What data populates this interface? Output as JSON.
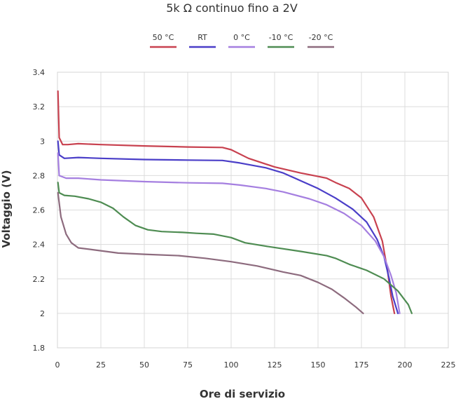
{
  "chart_data": {
    "type": "line",
    "title": "5k Ω continuo fino a 2V",
    "xlabel": "Ore di servizio",
    "ylabel": "Voltaggio (V)",
    "xlim": [
      0,
      225
    ],
    "ylim": [
      1.8,
      3.4
    ],
    "xticks": [
      0,
      25,
      50,
      75,
      100,
      125,
      150,
      175,
      200,
      225
    ],
    "yticks": [
      1.8,
      2,
      2.2,
      2.4,
      2.6,
      2.8,
      3,
      3.2,
      3.4
    ],
    "xtick_labels": [
      "0",
      "25",
      "50",
      "75",
      "100",
      "125",
      "150",
      "175",
      "200",
      "225"
    ],
    "ytick_labels": [
      "1.8",
      "2",
      "2.2",
      "2.4",
      "2.6",
      "2.8",
      "3",
      "3.2",
      "3.4"
    ],
    "grid": true,
    "legend_position": "top-center",
    "series": [
      {
        "name": "50 °C",
        "color": "#c8414f",
        "points": [
          [
            0.3,
            3.29
          ],
          [
            1,
            3.02
          ],
          [
            3,
            2.98
          ],
          [
            6,
            2.98
          ],
          [
            12,
            2.985
          ],
          [
            25,
            2.98
          ],
          [
            50,
            2.972
          ],
          [
            75,
            2.966
          ],
          [
            95,
            2.963
          ],
          [
            100,
            2.95
          ],
          [
            110,
            2.9
          ],
          [
            125,
            2.85
          ],
          [
            140,
            2.815
          ],
          [
            150,
            2.795
          ],
          [
            155,
            2.785
          ],
          [
            160,
            2.76
          ],
          [
            168,
            2.725
          ],
          [
            175,
            2.67
          ],
          [
            182,
            2.56
          ],
          [
            187,
            2.42
          ],
          [
            190,
            2.25
          ],
          [
            192,
            2.1
          ],
          [
            194,
            2.0
          ]
        ]
      },
      {
        "name": "RT",
        "color": "#4a3ec8",
        "points": [
          [
            0.3,
            3.0
          ],
          [
            1,
            2.92
          ],
          [
            4,
            2.9
          ],
          [
            12,
            2.905
          ],
          [
            25,
            2.9
          ],
          [
            50,
            2.893
          ],
          [
            75,
            2.89
          ],
          [
            95,
            2.888
          ],
          [
            105,
            2.873
          ],
          [
            120,
            2.845
          ],
          [
            130,
            2.815
          ],
          [
            140,
            2.77
          ],
          [
            150,
            2.725
          ],
          [
            160,
            2.67
          ],
          [
            170,
            2.605
          ],
          [
            178,
            2.53
          ],
          [
            184,
            2.43
          ],
          [
            188,
            2.33
          ],
          [
            191,
            2.2
          ],
          [
            193,
            2.1
          ],
          [
            196,
            2.0
          ]
        ]
      },
      {
        "name": "0 °C",
        "color": "#a57fe0",
        "points": [
          [
            0.3,
            2.93
          ],
          [
            1,
            2.8
          ],
          [
            5,
            2.785
          ],
          [
            12,
            2.785
          ],
          [
            25,
            2.775
          ],
          [
            50,
            2.765
          ],
          [
            75,
            2.758
          ],
          [
            95,
            2.755
          ],
          [
            105,
            2.745
          ],
          [
            120,
            2.725
          ],
          [
            130,
            2.705
          ],
          [
            145,
            2.665
          ],
          [
            155,
            2.63
          ],
          [
            165,
            2.58
          ],
          [
            175,
            2.51
          ],
          [
            183,
            2.42
          ],
          [
            188,
            2.33
          ],
          [
            192,
            2.22
          ],
          [
            195,
            2.12
          ],
          [
            197,
            2.0
          ]
        ]
      },
      {
        "name": "-10 °C",
        "color": "#4e8c52",
        "points": [
          [
            0.3,
            2.76
          ],
          [
            1,
            2.7
          ],
          [
            4,
            2.685
          ],
          [
            10,
            2.68
          ],
          [
            18,
            2.665
          ],
          [
            25,
            2.645
          ],
          [
            32,
            2.61
          ],
          [
            38,
            2.56
          ],
          [
            45,
            2.51
          ],
          [
            52,
            2.485
          ],
          [
            60,
            2.475
          ],
          [
            72,
            2.47
          ],
          [
            80,
            2.465
          ],
          [
            90,
            2.46
          ],
          [
            100,
            2.44
          ],
          [
            108,
            2.41
          ],
          [
            120,
            2.39
          ],
          [
            140,
            2.36
          ],
          [
            155,
            2.335
          ],
          [
            160,
            2.32
          ],
          [
            168,
            2.285
          ],
          [
            178,
            2.25
          ],
          [
            188,
            2.2
          ],
          [
            196,
            2.13
          ],
          [
            202,
            2.05
          ],
          [
            204,
            2.0
          ]
        ]
      },
      {
        "name": "-20 °C",
        "color": "#8d6b7e",
        "points": [
          [
            0.3,
            2.7
          ],
          [
            2,
            2.56
          ],
          [
            5,
            2.46
          ],
          [
            8,
            2.41
          ],
          [
            12,
            2.38
          ],
          [
            20,
            2.37
          ],
          [
            35,
            2.35
          ],
          [
            50,
            2.343
          ],
          [
            70,
            2.335
          ],
          [
            85,
            2.32
          ],
          [
            100,
            2.3
          ],
          [
            115,
            2.275
          ],
          [
            130,
            2.24
          ],
          [
            140,
            2.22
          ],
          [
            150,
            2.18
          ],
          [
            158,
            2.14
          ],
          [
            165,
            2.09
          ],
          [
            172,
            2.035
          ],
          [
            176,
            2.0
          ]
        ]
      }
    ]
  }
}
